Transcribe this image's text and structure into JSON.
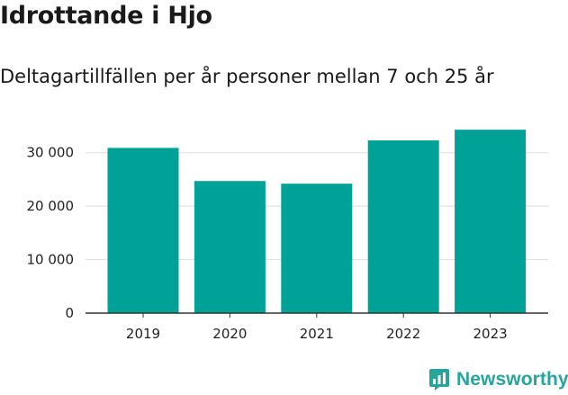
{
  "title": "Idrottande i Hjo",
  "subtitle": "Deltagartillfällen per år personer mellan 7 och 25 år",
  "brand": {
    "name": "Newsworthy",
    "icon": "bar-chart-speech-icon",
    "color": "#27a59a"
  },
  "colors": {
    "bar": "#00a298",
    "grid": "#dddddd",
    "axis": "#333333"
  },
  "chart_data": {
    "type": "bar",
    "title": "Idrottande i Hjo",
    "subtitle": "Deltagartillfällen per år personer mellan 7 och 25 år",
    "categories": [
      "2019",
      "2020",
      "2021",
      "2022",
      "2023"
    ],
    "values": [
      30900,
      24700,
      24200,
      32300,
      34300
    ],
    "ylim": [
      0,
      35000
    ],
    "yticks": [
      0,
      10000,
      20000,
      30000
    ],
    "ytick_labels": [
      "0",
      "10 000",
      "20 000",
      "30 000"
    ],
    "xlabel": "",
    "ylabel": "",
    "grid": true,
    "legend": "none"
  }
}
